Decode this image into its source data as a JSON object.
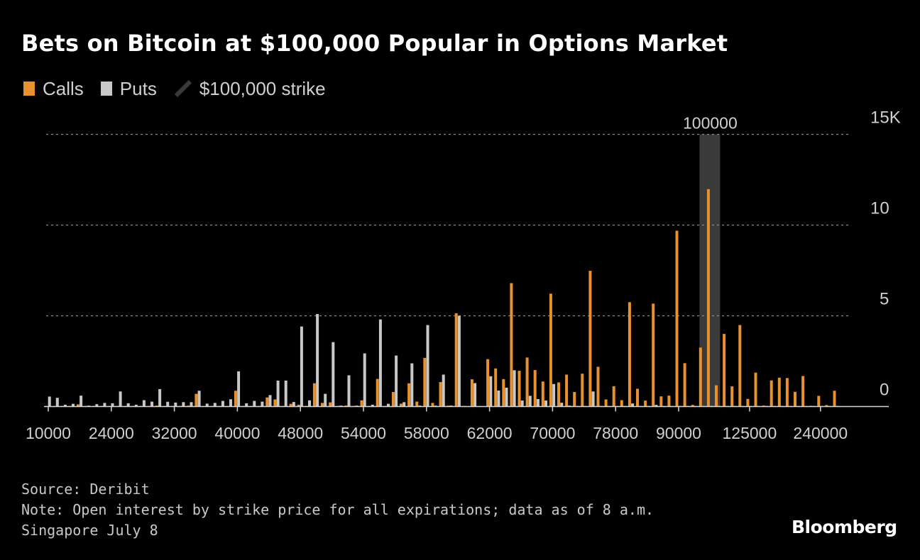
{
  "title": "Bets on Bitcoin at $100,000 Popular in Options Market",
  "legend": [
    {
      "label": "Calls",
      "color": "#e8912d",
      "icon": "square"
    },
    {
      "label": "Puts",
      "color": "#c8c8c8",
      "icon": "square"
    },
    {
      "label": "$100,000 strike",
      "color": "#3a3a3a",
      "icon": "slash"
    }
  ],
  "footer": {
    "source": "Source: Deribit",
    "note_line1": "Note: Open interest by strike price for all expirations; data as of 8 a.m.",
    "note_line2": "Singapore July 8"
  },
  "logo": "Bloomberg",
  "chart_data": {
    "type": "bar",
    "title": "Bets on Bitcoin at $100,000 Popular in Options Market",
    "xlabel": "",
    "ylabel": "",
    "ylim": [
      0,
      15
    ],
    "y_unit": "K",
    "y_ticks": [
      {
        "value": 0,
        "label": "0"
      },
      {
        "value": 5,
        "label": "5"
      },
      {
        "value": 10,
        "label": "10"
      },
      {
        "value": 15,
        "label": "15K"
      }
    ],
    "grid": true,
    "legend_position": "top-left",
    "highlight": {
      "label": "$100,000 strike",
      "category": "100000"
    },
    "categories": [
      "10000",
      "",
      "",
      "",
      "",
      "",
      "",
      "",
      "24000",
      "",
      "",
      "",
      "",
      "",
      "",
      "",
      "32000",
      "",
      "",
      "",
      "",
      "",
      "",
      "",
      "40000",
      "",
      "",
      "",
      "",
      "",
      "",
      "",
      "48000",
      "",
      "",
      "",
      "",
      "",
      "",
      "",
      "54000",
      "",
      "",
      "",
      "",
      "",
      "",
      "",
      "58000",
      "",
      "",
      "",
      "",
      "",
      "",
      "",
      "62000",
      "",
      "",
      "",
      "",
      "",
      "",
      "",
      "70000",
      "",
      "",
      "",
      "",
      "",
      "",
      "",
      "78000",
      "",
      "",
      "",
      "",
      "",
      "",
      "",
      "90000",
      "",
      "",
      "",
      "100000",
      "",
      "",
      "",
      "",
      "125000",
      "",
      "",
      "",
      "",
      "",
      "",
      "",
      "",
      "240000",
      "",
      ""
    ],
    "series": [
      {
        "name": "Calls",
        "color": "#e8912d",
        "values": [
          0.03,
          0.03,
          0.03,
          0.03,
          0.12,
          0.03,
          0.03,
          0.03,
          0.03,
          0.03,
          0.03,
          0.03,
          0.03,
          0.03,
          0.05,
          0.03,
          0.03,
          0.03,
          0.05,
          0.7,
          0.03,
          0.03,
          0.03,
          0.03,
          0.87,
          0.03,
          0.03,
          0.03,
          0.5,
          0.39,
          0.03,
          0.15,
          0.1,
          0.03,
          1.28,
          0.2,
          0.23,
          0.03,
          0.05,
          0.03,
          0.34,
          0.03,
          1.52,
          0.03,
          0.8,
          0.16,
          1.28,
          0.27,
          2.68,
          0.2,
          1.35,
          0.05,
          5.14,
          0.03,
          1.5,
          0.03,
          2.61,
          2.1,
          1.51,
          6.8,
          1.97,
          2.7,
          2.01,
          1.38,
          6.22,
          1.33,
          1.76,
          0.8,
          1.81,
          7.48,
          2.19,
          0.39,
          1.12,
          0.35,
          5.75,
          0.98,
          0.33,
          5.67,
          0.56,
          0.6,
          9.69,
          2.39,
          0.09,
          3.25,
          11.98,
          1.17,
          4.0,
          1.11,
          4.49,
          0.42,
          1.87,
          0.05,
          1.44,
          1.59,
          1.57,
          0.81,
          1.68,
          0.04,
          0.59,
          0.08,
          0.87
        ]
      },
      {
        "name": "Puts",
        "color": "#c8c8c8",
        "values": [
          0.55,
          0.48,
          0.1,
          0.15,
          0.6,
          0.05,
          0.13,
          0.2,
          0.18,
          0.83,
          0.18,
          0.1,
          0.35,
          0.27,
          0.96,
          0.26,
          0.22,
          0.24,
          0.24,
          0.87,
          0.16,
          0.2,
          0.31,
          0.4,
          1.94,
          0.18,
          0.31,
          0.27,
          0.63,
          1.43,
          1.43,
          0.25,
          4.41,
          0.34,
          5.1,
          0.7,
          3.55,
          0.05,
          1.72,
          0.05,
          2.93,
          0.1,
          4.8,
          0.15,
          2.81,
          0.24,
          2.38,
          0.05,
          4.49,
          0.05,
          1.76,
          0.05,
          5.0,
          0.02,
          1.29,
          0.02,
          1.67,
          0.88,
          1.04,
          2.0,
          0.33,
          0.59,
          0.41,
          0.33,
          1.24,
          0.21,
          0.05,
          0.03,
          0.03,
          0.83,
          0.03,
          0.03,
          0.03,
          0.03,
          0.17,
          0.03,
          0.03,
          0.09,
          0.03,
          0.03,
          0.03,
          0.03,
          0.03,
          0.03,
          0.03,
          0.03,
          0.03,
          0.03,
          0.03,
          0.03,
          0.03,
          0.03,
          0.03,
          0.03,
          0.03,
          0.03,
          0.03,
          0.03,
          0.03,
          0.03,
          0.03
        ]
      }
    ]
  }
}
